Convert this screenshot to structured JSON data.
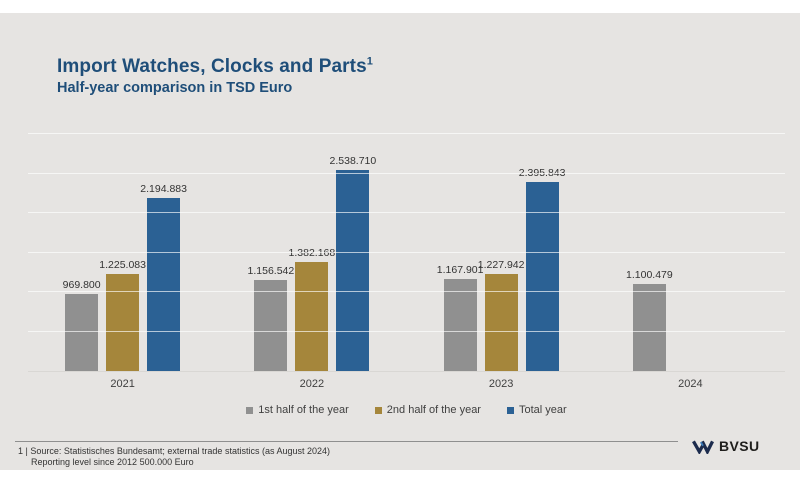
{
  "slide": {
    "title": "Import Watches, Clocks and Parts",
    "title_footnote_marker": "1",
    "subtitle": "Half-year comparison in TSD Euro",
    "title_color": "#1f4e79",
    "background_color": "#e6e4e2"
  },
  "chart_data": {
    "type": "bar",
    "title": "Import Watches, Clocks and Parts (1)",
    "subtitle": "Half-year comparison in TSD Euro",
    "unit": "TSD Euro",
    "categories": [
      "2021",
      "2022",
      "2023",
      "2024"
    ],
    "series": [
      {
        "name": "1st half of the year",
        "color": "#909090",
        "values": [
          969800,
          1156542,
          1167901,
          1100479
        ],
        "labels": [
          "969.800",
          "1.156.542",
          "1.167.901",
          "1.100.479"
        ]
      },
      {
        "name": "2nd half of the year",
        "color": "#a5863b",
        "values": [
          1225083,
          1382168,
          1227942,
          null
        ],
        "labels": [
          "1.225.083",
          "1.382.168",
          "1.227.942",
          null
        ]
      },
      {
        "name": "Total year",
        "color": "#2b6194",
        "values": [
          2194883,
          2538710,
          2395843,
          null
        ],
        "labels": [
          "2.194.883",
          "2.538.710",
          "2.395.843",
          null
        ]
      }
    ],
    "ylim": [
      0,
      3000000
    ],
    "gridline_step": 500000,
    "grid": true,
    "legend_position": "bottom"
  },
  "footer": {
    "footnote_line1": "1 | Source: Statistisches Bundesamt; external trade statistics (as August 2024)",
    "footnote_line2": "Reporting level since 2012 500.000 Euro",
    "logo_text": "BVSU"
  }
}
